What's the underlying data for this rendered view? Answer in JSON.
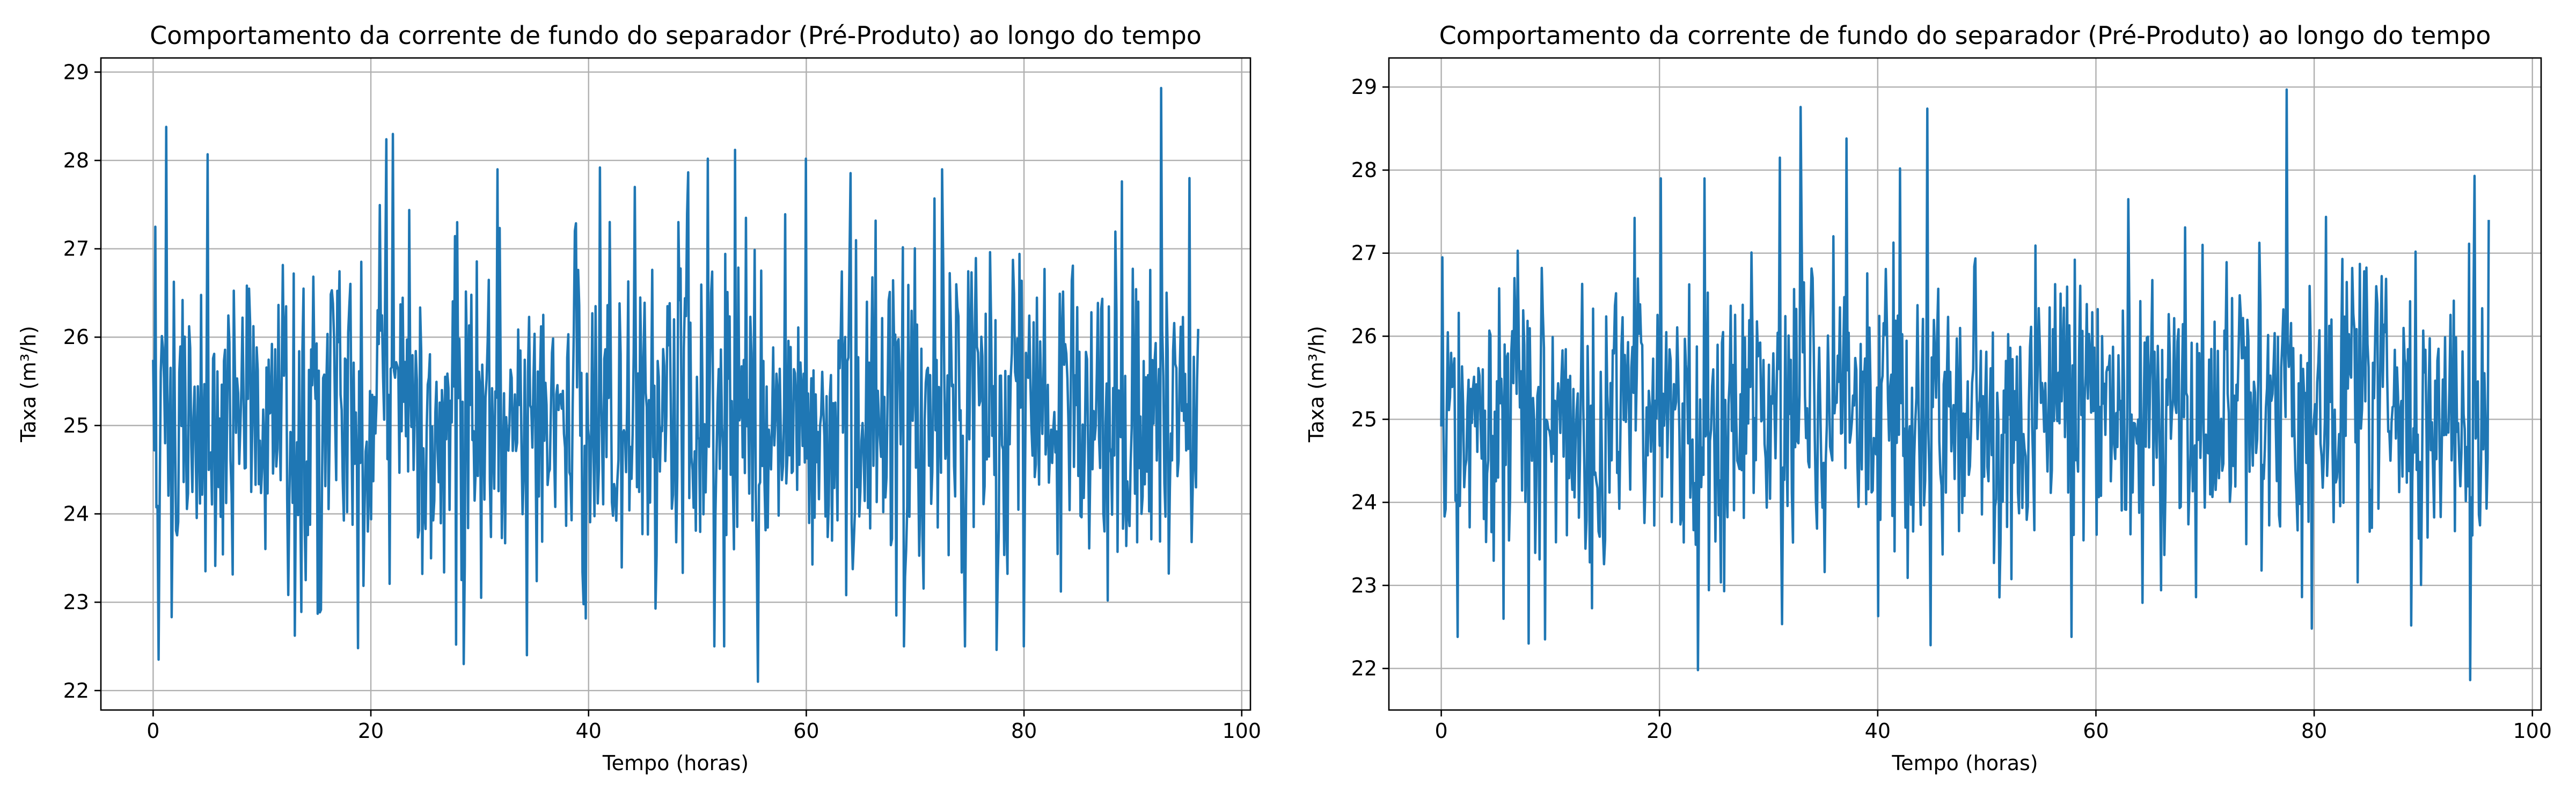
{
  "figure": {
    "background": "#ffffff",
    "line_color": "#1f77b4"
  },
  "chart_data": [
    {
      "type": "line",
      "title": "Comportamento da corrente de fundo do separador (Pré-Produto) ao longo do tempo",
      "xlabel": "Tempo (horas)",
      "ylabel": "Taxa (m³/h)",
      "xlim": [
        -4.8,
        100.8
      ],
      "ylim": [
        21.78,
        29.16
      ],
      "xticks": [
        0,
        20,
        40,
        60,
        80,
        100
      ],
      "yticks": [
        22,
        23,
        24,
        25,
        26,
        27,
        28,
        29
      ],
      "grid": true,
      "legend": "none",
      "series": [
        {
          "color": "#1f77b4",
          "x_start": 0,
          "x_end": 96,
          "mean": 25.1,
          "sample_count": 960,
          "seed": 1337,
          "peaks": [
            {
              "x": 0.2,
              "y": 27.25
            },
            {
              "x": 0.5,
              "y": 22.35
            },
            {
              "x": 1.2,
              "y": 28.38
            },
            {
              "x": 5.0,
              "y": 28.07
            },
            {
              "x": 18.8,
              "y": 22.48
            },
            {
              "x": 21.4,
              "y": 28.24
            },
            {
              "x": 22.0,
              "y": 28.3
            },
            {
              "x": 27.8,
              "y": 22.52
            },
            {
              "x": 28.5,
              "y": 22.3
            },
            {
              "x": 34.3,
              "y": 22.4
            },
            {
              "x": 41.0,
              "y": 27.92
            },
            {
              "x": 51.0,
              "y": 28.02
            },
            {
              "x": 53.5,
              "y": 28.12
            },
            {
              "x": 55.6,
              "y": 22.1
            },
            {
              "x": 60.0,
              "y": 28.02
            },
            {
              "x": 77.5,
              "y": 22.46
            },
            {
              "x": 80.0,
              "y": 22.5
            },
            {
              "x": 92.6,
              "y": 28.82
            },
            {
              "x": 95.2,
              "y": 27.8
            }
          ]
        }
      ]
    },
    {
      "type": "line",
      "title": "Comportamento da corrente de fundo do separador (Pré-Produto) ao longo do tempo",
      "xlabel": "Tempo (horas)",
      "ylabel": "Taxa (m³/h)",
      "xlim": [
        -4.8,
        100.8
      ],
      "ylim": [
        21.5,
        29.35
      ],
      "xticks": [
        0,
        20,
        40,
        60,
        80,
        100
      ],
      "yticks": [
        22,
        23,
        24,
        25,
        26,
        27,
        28,
        29
      ],
      "grid": true,
      "legend": "none",
      "series": [
        {
          "color": "#1f77b4",
          "x_start": 0,
          "x_end": 96,
          "mean": 25.1,
          "sample_count": 960,
          "seed": 4242,
          "peaks": [
            {
              "x": 0.1,
              "y": 26.95
            },
            {
              "x": 1.5,
              "y": 22.38
            },
            {
              "x": 8.0,
              "y": 22.3
            },
            {
              "x": 9.5,
              "y": 22.35
            },
            {
              "x": 23.5,
              "y": 21.98
            },
            {
              "x": 31.0,
              "y": 28.15
            },
            {
              "x": 32.9,
              "y": 28.76
            },
            {
              "x": 37.1,
              "y": 28.38
            },
            {
              "x": 40.0,
              "y": 22.63
            },
            {
              "x": 42.0,
              "y": 28.02
            },
            {
              "x": 44.5,
              "y": 28.74
            },
            {
              "x": 44.8,
              "y": 22.28
            },
            {
              "x": 57.8,
              "y": 22.38
            },
            {
              "x": 63.0,
              "y": 27.65
            },
            {
              "x": 77.5,
              "y": 28.97
            },
            {
              "x": 79.8,
              "y": 22.48
            },
            {
              "x": 94.3,
              "y": 21.86
            },
            {
              "x": 94.7,
              "y": 27.93
            }
          ]
        }
      ]
    }
  ]
}
